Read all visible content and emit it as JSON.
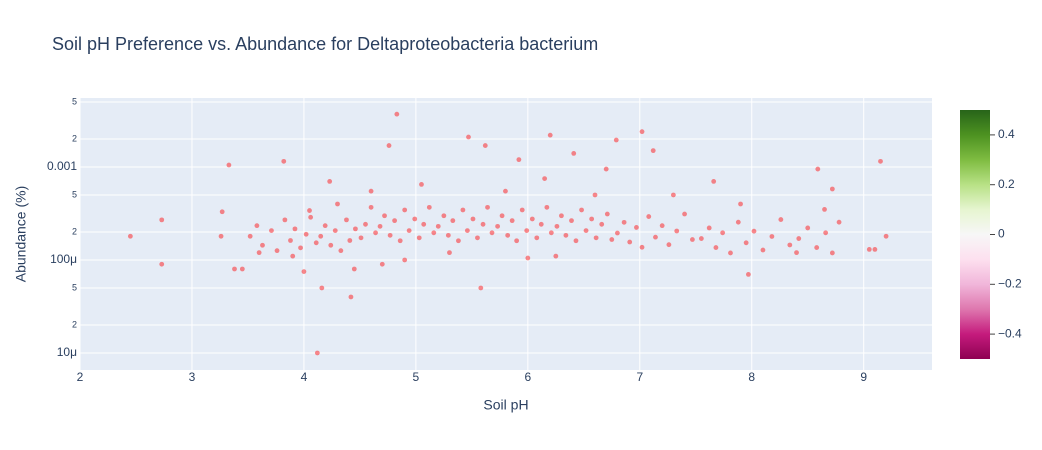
{
  "chart_data": {
    "type": "scatter",
    "title": "Soil pH Preference vs. Abundance for Deltaproteobacteria bacterium",
    "x_label": "Soil pH",
    "y_label": "Abundance (%)",
    "color": "#ff0000",
    "grid": true,
    "log_y": true,
    "xlim": [
      2,
      9.61
    ],
    "xticks": [
      2,
      3,
      4,
      5,
      6,
      7,
      8,
      9
    ],
    "ylim": [
      6.56e-06,
      0.00552
    ],
    "yticks": [
      {
        "value": 0.005,
        "label": "5"
      },
      {
        "value": 0.002,
        "label": "2"
      },
      0.001,
      {
        "value": 0.0005,
        "label": "5"
      },
      {
        "value": 0.0002,
        "label": "2"
      },
      {
        "value": 0.0001,
        "label": "100μ"
      },
      {
        "value": 5e-05,
        "label": "5"
      },
      {
        "value": 2e-05,
        "label": "2"
      },
      {
        "value": 1e-05,
        "label": "10μ"
      }
    ],
    "colorbar_lim": [
      -0.5,
      0.5
    ],
    "colorbar_ticks": [
      0.4,
      0.2,
      0,
      {
        "value": -0.2,
        "label": "−0.2"
      },
      {
        "value": -0.4,
        "label": "−0.4"
      }
    ],
    "x": [
      3.52,
      3.58,
      3.63,
      3.71,
      3.76,
      3.83,
      3.88,
      3.92,
      3.97,
      4.02,
      4.06,
      4.11,
      4.15,
      4.19,
      4.24,
      4.28,
      4.33,
      4.38,
      4.41,
      4.46,
      4.51,
      4.55,
      4.6,
      4.64,
      4.68,
      4.72,
      4.77,
      4.81,
      4.86,
      4.9,
      4.94,
      4.99,
      5.03,
      5.07,
      5.12,
      5.16,
      5.2,
      5.25,
      5.29,
      5.33,
      5.38,
      5.42,
      5.46,
      5.51,
      5.55,
      5.6,
      5.64,
      5.68,
      5.73,
      5.77,
      5.82,
      5.86,
      5.9,
      5.95,
      5.99,
      6.04,
      6.08,
      6.12,
      6.17,
      6.21,
      6.26,
      6.3,
      6.34,
      6.39,
      6.43,
      6.48,
      6.52,
      6.57,
      6.61,
      6.66,
      6.71,
      6.75,
      6.8,
      6.86,
      6.91,
      6.97,
      7.02,
      7.08,
      7.14,
      7.2,
      7.26,
      7.33,
      7.4,
      7.47,
      7.55,
      7.62,
      7.68,
      7.74,
      7.81,
      7.88,
      7.95,
      8.02,
      8.1,
      8.18,
      8.26,
      8.34,
      8.42,
      8.5,
      8.58,
      8.66,
      8.72,
      8.78,
      2.45,
      2.73,
      2.73,
      3.33,
      3.82,
      4.83,
      5.47,
      6.2,
      7.02,
      6.79,
      7.12,
      5.62,
      4.76,
      5.92,
      6.41,
      6.7,
      8.59,
      9.15,
      4.12,
      4.42,
      4.16,
      5.58,
      7.97,
      8.72,
      7.66,
      4.23,
      9.2,
      9.05,
      9.1,
      3.26,
      3.27,
      3.38,
      3.45,
      3.9,
      4.05,
      4.3,
      4.6,
      4.9,
      5.05,
      5.3,
      5.8,
      6.15,
      6.25,
      6.6,
      7.3,
      7.9,
      8.65,
      4.45,
      4.0,
      4.7,
      6.0,
      3.6,
      8.4
    ],
    "values": [
      0.00018,
      0.000234,
      0.000144,
      0.000207,
      0.000126,
      0.00027,
      0.000162,
      0.000216,
      0.000135,
      0.000189,
      0.000288,
      0.000153,
      0.00018,
      0.000234,
      0.000144,
      0.000207,
      0.000126,
      0.00027,
      0.000162,
      0.000216,
      0.000173,
      0.000242,
      0.000368,
      0.000196,
      0.00023,
      0.000299,
      0.000184,
      0.000265,
      0.000161,
      0.000345,
      0.000207,
      0.000276,
      0.000173,
      0.000242,
      0.000368,
      0.000196,
      0.00023,
      0.000299,
      0.000184,
      0.000265,
      0.000161,
      0.000345,
      0.000207,
      0.000276,
      0.000173,
      0.000242,
      0.000368,
      0.000196,
      0.00023,
      0.000299,
      0.000184,
      0.000265,
      0.000161,
      0.000345,
      0.000207,
      0.000276,
      0.000173,
      0.000242,
      0.000368,
      0.000196,
      0.00023,
      0.000299,
      0.000184,
      0.000265,
      0.000161,
      0.000345,
      0.000207,
      0.000276,
      0.000173,
      0.000242,
      0.000312,
      0.000166,
      0.000195,
      0.000254,
      0.000156,
      0.000224,
      0.000137,
      0.000293,
      0.000176,
      0.000234,
      0.000146,
      0.000205,
      0.000312,
      0.000166,
      0.00017,
      0.000221,
      0.000136,
      0.000196,
      0.000119,
      0.000255,
      0.000153,
      0.000204,
      0.000128,
      0.000179,
      0.000272,
      0.000145,
      0.00017,
      0.000221,
      0.000136,
      0.000196,
      0.000119,
      0.000255,
      0.00018,
      0.00027,
      9e-05,
      0.00105,
      0.00115,
      0.0037,
      0.0021,
      0.0022,
      0.0024,
      0.00195,
      0.0015,
      0.0017,
      0.0017,
      0.0012,
      0.0014,
      0.00095,
      0.00095,
      0.00115,
      1e-05,
      4e-05,
      5e-05,
      5e-05,
      7e-05,
      0.00058,
      0.0007,
      0.0007,
      0.00018,
      0.00013,
      0.00013,
      0.00018,
      0.00033,
      8e-05,
      8e-05,
      0.00011,
      0.00034,
      0.0004,
      0.00055,
      0.0001,
      0.00065,
      0.00012,
      0.00055,
      0.00075,
      0.00011,
      0.0005,
      0.0005,
      0.0004,
      0.00035,
      8e-05,
      7.5e-05,
      9e-05,
      0.000105,
      0.00012,
      0.00012
    ]
  }
}
